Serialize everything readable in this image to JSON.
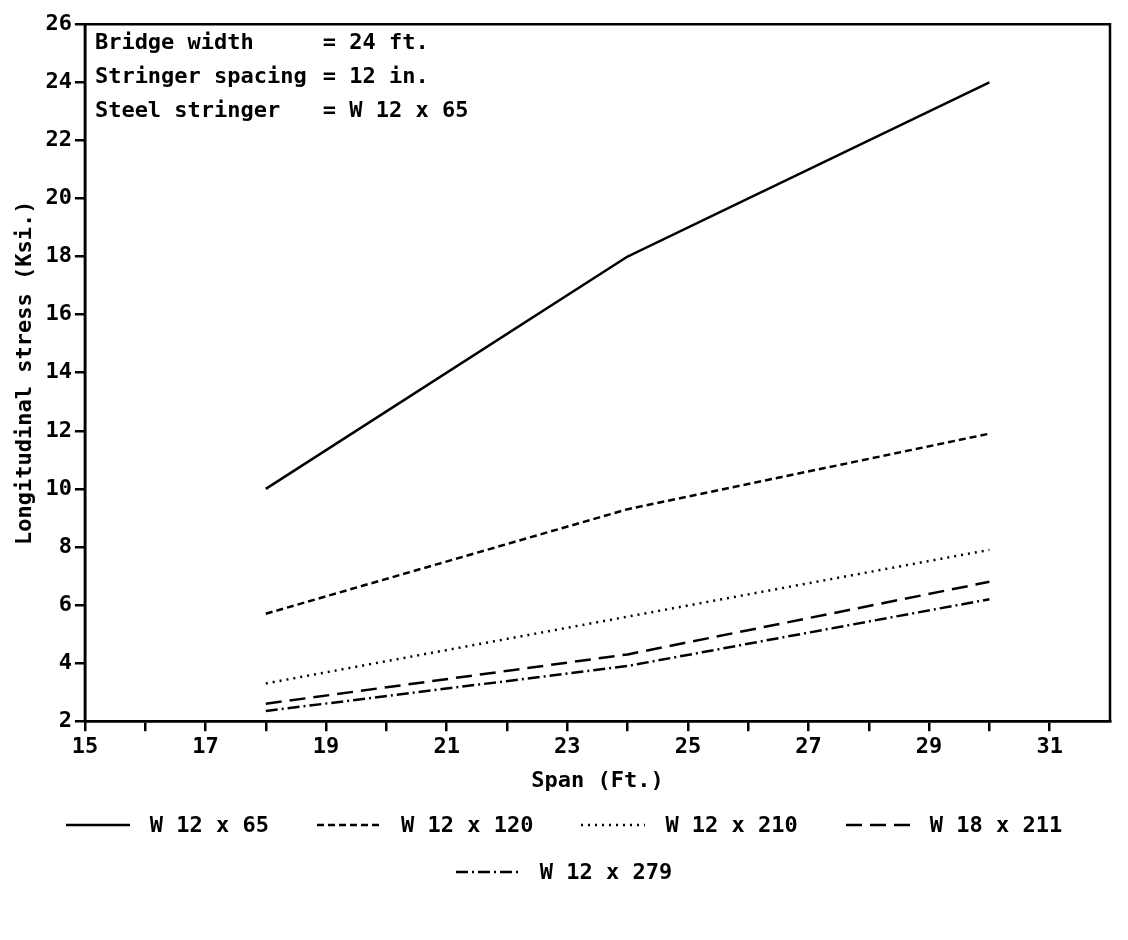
{
  "chart_data": {
    "type": "line",
    "xlabel": "Span (Ft.)",
    "ylabel": "Longitudinal stress (Ksi.)",
    "annotations": [
      "Bridge width = 24 ft.",
      "Stringer spacing = 12 in.",
      "Steel stringer = W 12 x 65"
    ],
    "x": [
      18,
      24,
      30
    ],
    "series": [
      {
        "name": "W 12 x 65",
        "color": "#000000",
        "line_style": "solid",
        "values": [
          10,
          18,
          24
        ]
      },
      {
        "name": "W 12 x 120",
        "color": "#000000",
        "line_style": "dashed",
        "values": [
          5.7,
          9.3,
          11.9
        ]
      },
      {
        "name": "W 12 x 210",
        "color": "#000000",
        "line_style": "dotted",
        "values": [
          3.3,
          5.6,
          7.9
        ]
      },
      {
        "name": "W 18 x 211",
        "color": "#000000",
        "line_style": "longdash",
        "values": [
          2.6,
          4.3,
          6.8
        ]
      },
      {
        "name": "W 12 x 279",
        "color": "#000000",
        "line_style": "dashdot",
        "values": [
          2.35,
          3.9,
          6.2
        ]
      }
    ],
    "xlim": [
      15,
      32
    ],
    "xticks": [
      15,
      {
        "value": 16,
        "label": null
      },
      17,
      {
        "value": 18,
        "label": null
      },
      19,
      {
        "value": 20,
        "label": null
      },
      21,
      {
        "value": 22,
        "label": null
      },
      23,
      {
        "value": 24,
        "label": null
      },
      25,
      {
        "value": 26,
        "label": null
      },
      27,
      {
        "value": 28,
        "label": null
      },
      29,
      {
        "value": 30,
        "label": null
      },
      31
    ],
    "ylim": [
      2,
      26
    ],
    "yticks": [
      2,
      4,
      6,
      8,
      10,
      12,
      14,
      16,
      18,
      20,
      22,
      24,
      26
    ],
    "grid": false,
    "legend": "bottom",
    "marker": "none"
  }
}
